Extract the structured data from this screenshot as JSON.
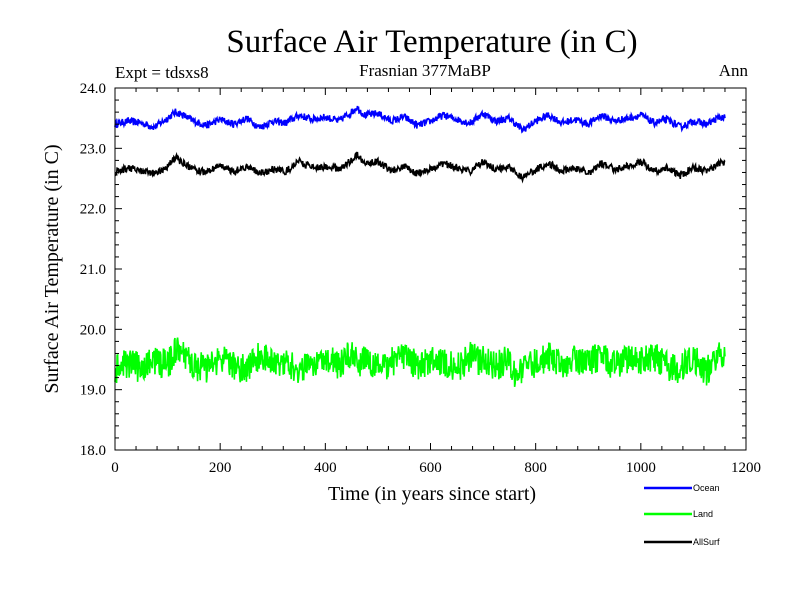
{
  "chart_data": {
    "type": "line",
    "title": "Surface Air Temperature (in C)",
    "experiment": "Expt = tdsxs8",
    "period": "Frasnian 377MaBP",
    "season": "Ann",
    "xlabel": "Time (in years since start)",
    "ylabel": "Surface Air Temperature (in C)",
    "xlim": [
      0,
      1200
    ],
    "ylim": [
      18.0,
      24.0
    ],
    "xticks": [
      "0",
      "200",
      "400",
      "600",
      "800",
      "1000",
      "1200"
    ],
    "yticks": [
      "18.0",
      "19.0",
      "20.0",
      "21.0",
      "22.0",
      "23.0",
      "24.0"
    ],
    "legend_position": "below-right",
    "series": [
      {
        "name": "Ocean",
        "color": "#0000ff",
        "x": [
          0,
          25,
          50,
          75,
          100,
          115,
          130,
          150,
          175,
          200,
          225,
          250,
          275,
          300,
          325,
          350,
          375,
          400,
          425,
          450,
          460,
          475,
          500,
          525,
          550,
          575,
          600,
          625,
          650,
          675,
          700,
          725,
          750,
          775,
          800,
          825,
          850,
          875,
          900,
          925,
          950,
          975,
          1000,
          1025,
          1050,
          1075,
          1100,
          1125,
          1150,
          1160
        ],
        "values": [
          23.4,
          23.45,
          23.42,
          23.35,
          23.5,
          23.6,
          23.55,
          23.45,
          23.38,
          23.48,
          23.4,
          23.5,
          23.35,
          23.45,
          23.42,
          23.55,
          23.48,
          23.52,
          23.45,
          23.6,
          23.68,
          23.55,
          23.58,
          23.45,
          23.52,
          23.38,
          23.45,
          23.55,
          23.48,
          23.42,
          23.58,
          23.45,
          23.5,
          23.3,
          23.45,
          23.55,
          23.42,
          23.48,
          23.4,
          23.55,
          23.45,
          23.5,
          23.55,
          23.42,
          23.48,
          23.35,
          23.45,
          23.4,
          23.52,
          23.5
        ]
      },
      {
        "name": "Land",
        "color": "#00ff00",
        "x": [
          0,
          25,
          50,
          75,
          100,
          115,
          130,
          150,
          175,
          200,
          225,
          250,
          275,
          300,
          325,
          350,
          375,
          400,
          425,
          450,
          460,
          475,
          500,
          525,
          550,
          575,
          600,
          625,
          650,
          675,
          700,
          725,
          750,
          765,
          775,
          800,
          825,
          850,
          875,
          900,
          925,
          950,
          975,
          1000,
          1025,
          1050,
          1075,
          1100,
          1125,
          1150,
          1160
        ],
        "values": [
          19.3,
          19.45,
          19.35,
          19.5,
          19.4,
          19.65,
          19.55,
          19.4,
          19.35,
          19.5,
          19.4,
          19.35,
          19.55,
          19.45,
          19.5,
          19.3,
          19.45,
          19.55,
          19.4,
          19.6,
          19.45,
          19.5,
          19.35,
          19.45,
          19.55,
          19.4,
          19.5,
          19.45,
          19.35,
          19.55,
          19.48,
          19.4,
          19.5,
          19.15,
          19.35,
          19.45,
          19.55,
          19.4,
          19.5,
          19.45,
          19.55,
          19.4,
          19.5,
          19.45,
          19.55,
          19.4,
          19.35,
          19.5,
          19.3,
          19.6,
          19.55
        ]
      },
      {
        "name": "AllSurf",
        "color": "#000000",
        "x": [
          0,
          25,
          50,
          75,
          100,
          115,
          130,
          150,
          175,
          200,
          225,
          250,
          275,
          300,
          325,
          350,
          375,
          400,
          425,
          450,
          460,
          475,
          500,
          525,
          550,
          575,
          600,
          625,
          650,
          675,
          700,
          725,
          750,
          775,
          800,
          825,
          850,
          875,
          900,
          925,
          950,
          975,
          1000,
          1025,
          1050,
          1075,
          1100,
          1125,
          1150,
          1160
        ],
        "values": [
          22.6,
          22.68,
          22.62,
          22.58,
          22.7,
          22.85,
          22.75,
          22.65,
          22.6,
          22.72,
          22.62,
          22.7,
          22.58,
          22.65,
          22.62,
          22.78,
          22.68,
          22.7,
          22.65,
          22.8,
          22.9,
          22.75,
          22.78,
          22.62,
          22.7,
          22.58,
          22.65,
          22.75,
          22.68,
          22.62,
          22.78,
          22.65,
          22.7,
          22.52,
          22.65,
          22.75,
          22.62,
          22.68,
          22.6,
          22.75,
          22.65,
          22.7,
          22.78,
          22.62,
          22.68,
          22.55,
          22.68,
          22.62,
          22.75,
          22.78
        ]
      }
    ]
  }
}
